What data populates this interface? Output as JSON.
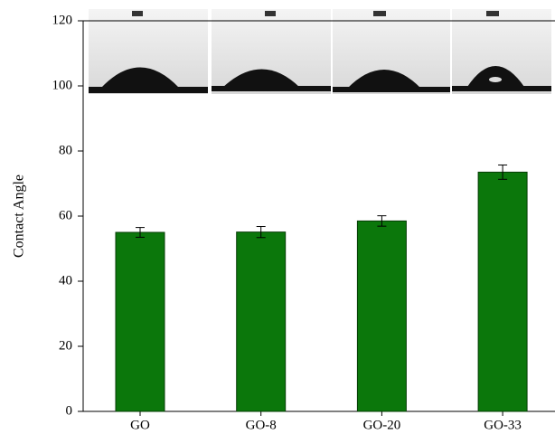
{
  "chart_data": {
    "type": "bar",
    "y_label": "Contact Angle",
    "categories": [
      "GO",
      "GO-8",
      "GO-20",
      "GO-33"
    ],
    "values": [
      55.0,
      55.1,
      58.5,
      73.5
    ],
    "errors": [
      1.5,
      1.7,
      1.6,
      2.2
    ],
    "color": "#0b770b",
    "ylim": [
      0,
      120
    ],
    "yticks": [
      0,
      20,
      40,
      60,
      80,
      100,
      120
    ]
  }
}
